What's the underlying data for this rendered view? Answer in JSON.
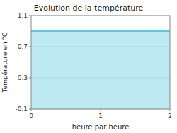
{
  "chart_data": {
    "type": "area",
    "title": "Evolution de la température",
    "x": [
      0,
      2
    ],
    "values": [
      0.9,
      0.9
    ],
    "color": "#5bc8e0",
    "xlabel": "heure par heure",
    "ylabel": "Température en °C",
    "xlim": [
      0,
      2
    ],
    "ylim": [
      -0.1,
      1.1
    ],
    "xticks": [
      0,
      1,
      2
    ],
    "yticks": [
      -0.1,
      0.3,
      0.7,
      1.1
    ],
    "grid": true
  }
}
